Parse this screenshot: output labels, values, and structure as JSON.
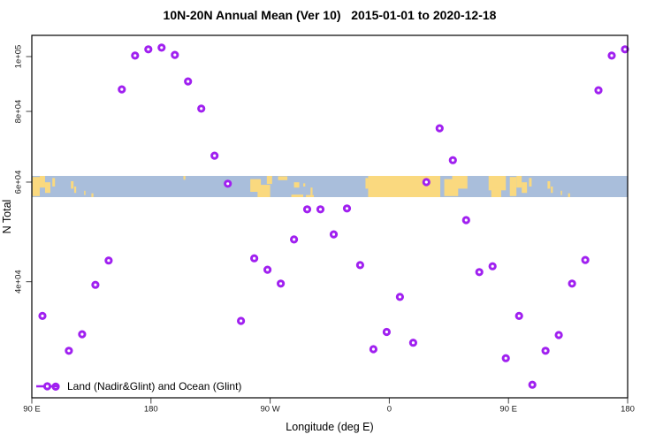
{
  "title": "10N-20N Annual Mean (Ver 10)   2015-01-01 to 2020-12-18",
  "axes": {
    "x_label": "Longitude (deg E)",
    "y_label": "N Total",
    "x_ticks": [
      {
        "label": "90 E",
        "lon": 90
      },
      {
        "label": "180",
        "lon": 180
      },
      {
        "label": "90 W",
        "lon": 270
      },
      {
        "label": "0",
        "lon": 360
      },
      {
        "label": "90 E",
        "lon": 450
      },
      {
        "label": "180",
        "lon": 540
      }
    ],
    "y_ticks": [
      {
        "label": "1e+05",
        "value": 100000
      },
      {
        "label": "8e+04",
        "value": 80000
      },
      {
        "label": "6e+04",
        "value": 60000
      },
      {
        "label": "4e+04",
        "value": 40000
      }
    ]
  },
  "legend": {
    "label": "Land (Nadir&Glint) and Ocean (Glint)"
  },
  "colors": {
    "point": "#A020F0",
    "ocean": "#A9BEDB",
    "land": "#FAD97F",
    "axis": "#000000",
    "tick": "#444444"
  },
  "map_band": {
    "latitude_range": "10N-20N",
    "description": "world-map strip (ocean blue, land yellow) drawn across the plot at the 6e+04 level",
    "land_blocks": [
      [
        90.5,
        96,
        0.05,
        0.95
      ],
      [
        96,
        100,
        0.0,
        0.55
      ],
      [
        100,
        104,
        0.3,
        0.8
      ],
      [
        105.5,
        107.5,
        0.1,
        0.5
      ],
      [
        119.5,
        121.5,
        0.25,
        0.6
      ],
      [
        122,
        123.5,
        0.5,
        0.8
      ],
      [
        129.5,
        130.5,
        0.7,
        0.9
      ],
      [
        135,
        136.5,
        0.82,
        1.0
      ],
      [
        204.5,
        206,
        0.0,
        0.18
      ],
      [
        255,
        263,
        0.15,
        0.75
      ],
      [
        260.5,
        270,
        0.42,
        1.0
      ],
      [
        267.5,
        271.5,
        0.0,
        0.38
      ],
      [
        276,
        283,
        0.02,
        0.2
      ],
      [
        288,
        292,
        0.3,
        0.55
      ],
      [
        295,
        296.5,
        0.35,
        0.5
      ],
      [
        286,
        295,
        0.88,
        1.0
      ],
      [
        297,
        303,
        0.9,
        1.0
      ],
      [
        300.5,
        302,
        0.55,
        0.9
      ],
      [
        342,
        344,
        0.1,
        0.6
      ],
      [
        344,
        398.5,
        0.0,
        1.0
      ],
      [
        401.5,
        412,
        0.15,
        0.95
      ],
      [
        407.5,
        419,
        0.0,
        0.6
      ],
      [
        435,
        448,
        0.0,
        0.68
      ],
      [
        437,
        444.5,
        0.55,
        1.0
      ],
      [
        451,
        456,
        0.05,
        0.95
      ],
      [
        456,
        460,
        0.0,
        0.55
      ],
      [
        460,
        464,
        0.3,
        0.8
      ],
      [
        465.5,
        467.5,
        0.1,
        0.5
      ],
      [
        479.5,
        481.5,
        0.25,
        0.6
      ],
      [
        482,
        483.5,
        0.5,
        0.8
      ],
      [
        489.5,
        490.5,
        0.7,
        0.9
      ],
      [
        495,
        496.5,
        0.82,
        1.0
      ]
    ]
  },
  "chart_data": {
    "type": "scatter",
    "title": "10N-20N Annual Mean (Ver 10)   2015-01-01 to 2020-12-18",
    "xlabel": "Longitude (deg E)",
    "ylabel": "N Total",
    "y_scale": "log",
    "grid": false,
    "marker": "open-circle",
    "legend_position": "bottom-left",
    "legend_label": "Land (Nadir&Glint) and Ocean (Glint)",
    "xlim_extended_deg": [
      90,
      540
    ],
    "x_tick_labels": [
      "90 E",
      "180",
      "90 W",
      "0",
      "90 E",
      "180"
    ],
    "ylim": [
      25000,
      112000
    ],
    "y_tick_values": [
      100000,
      80000,
      60000,
      40000
    ],
    "points": [
      {
        "lon": 98,
        "n": 34800
      },
      {
        "lon": 108,
        "n": 26100
      },
      {
        "lon": 118,
        "n": 30200
      },
      {
        "lon": 128,
        "n": 32300
      },
      {
        "lon": 138,
        "n": 39500
      },
      {
        "lon": 148,
        "n": 43600
      },
      {
        "lon": 158,
        "n": 87500
      },
      {
        "lon": 168,
        "n": 100400
      },
      {
        "lon": 178,
        "n": 103000
      },
      {
        "lon": 188,
        "n": 103700
      },
      {
        "lon": 198,
        "n": 100700
      },
      {
        "lon": 208,
        "n": 90400
      },
      {
        "lon": 218,
        "n": 80900
      },
      {
        "lon": 228,
        "n": 66800
      },
      {
        "lon": 238,
        "n": 59600
      },
      {
        "lon": 248,
        "n": 34100
      },
      {
        "lon": 258,
        "n": 44000
      },
      {
        "lon": 268,
        "n": 42000
      },
      {
        "lon": 278,
        "n": 39700
      },
      {
        "lon": 288,
        "n": 47500
      },
      {
        "lon": 298,
        "n": 53700
      },
      {
        "lon": 308,
        "n": 53700
      },
      {
        "lon": 318,
        "n": 48500
      },
      {
        "lon": 328,
        "n": 53900
      },
      {
        "lon": 338,
        "n": 42800
      },
      {
        "lon": 348,
        "n": 30400
      },
      {
        "lon": 358,
        "n": 32600
      },
      {
        "lon": 368,
        "n": 37600
      },
      {
        "lon": 378,
        "n": 31200
      },
      {
        "lon": 388,
        "n": 60000
      },
      {
        "lon": 398,
        "n": 74700
      },
      {
        "lon": 408,
        "n": 65600
      },
      {
        "lon": 418,
        "n": 51400
      },
      {
        "lon": 428,
        "n": 41600
      },
      {
        "lon": 438,
        "n": 42600
      },
      {
        "lon": 448,
        "n": 29300
      },
      {
        "lon": 458,
        "n": 34800
      },
      {
        "lon": 468,
        "n": 26300
      },
      {
        "lon": 478,
        "n": 30200
      },
      {
        "lon": 488,
        "n": 32200
      },
      {
        "lon": 498,
        "n": 39700
      },
      {
        "lon": 508,
        "n": 43700
      },
      {
        "lon": 518,
        "n": 87200
      },
      {
        "lon": 528,
        "n": 100400
      },
      {
        "lon": 538,
        "n": 103000
      }
    ]
  }
}
